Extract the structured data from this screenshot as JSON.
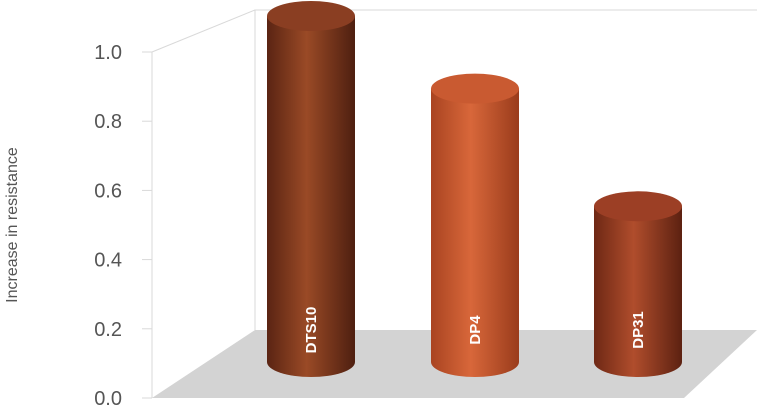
{
  "chart_data": {
    "type": "bar",
    "title": "",
    "xlabel": "",
    "ylabel": "Increase in resistance",
    "ylim": [
      0,
      1.0
    ],
    "yticks": [
      "0.0",
      "0.2",
      "0.4",
      "0.6",
      "0.8",
      "1.0"
    ],
    "categories": [
      "DTS10",
      "DP4",
      "DP31"
    ],
    "values": [
      1.0,
      0.79,
      0.45
    ],
    "bar_shape": "cylinder",
    "bar_colors": [
      "#8a3e22",
      "#c95a31",
      "#9c3f25"
    ],
    "floor_color": "#d3d3d3",
    "grid": false,
    "legend": "none"
  }
}
